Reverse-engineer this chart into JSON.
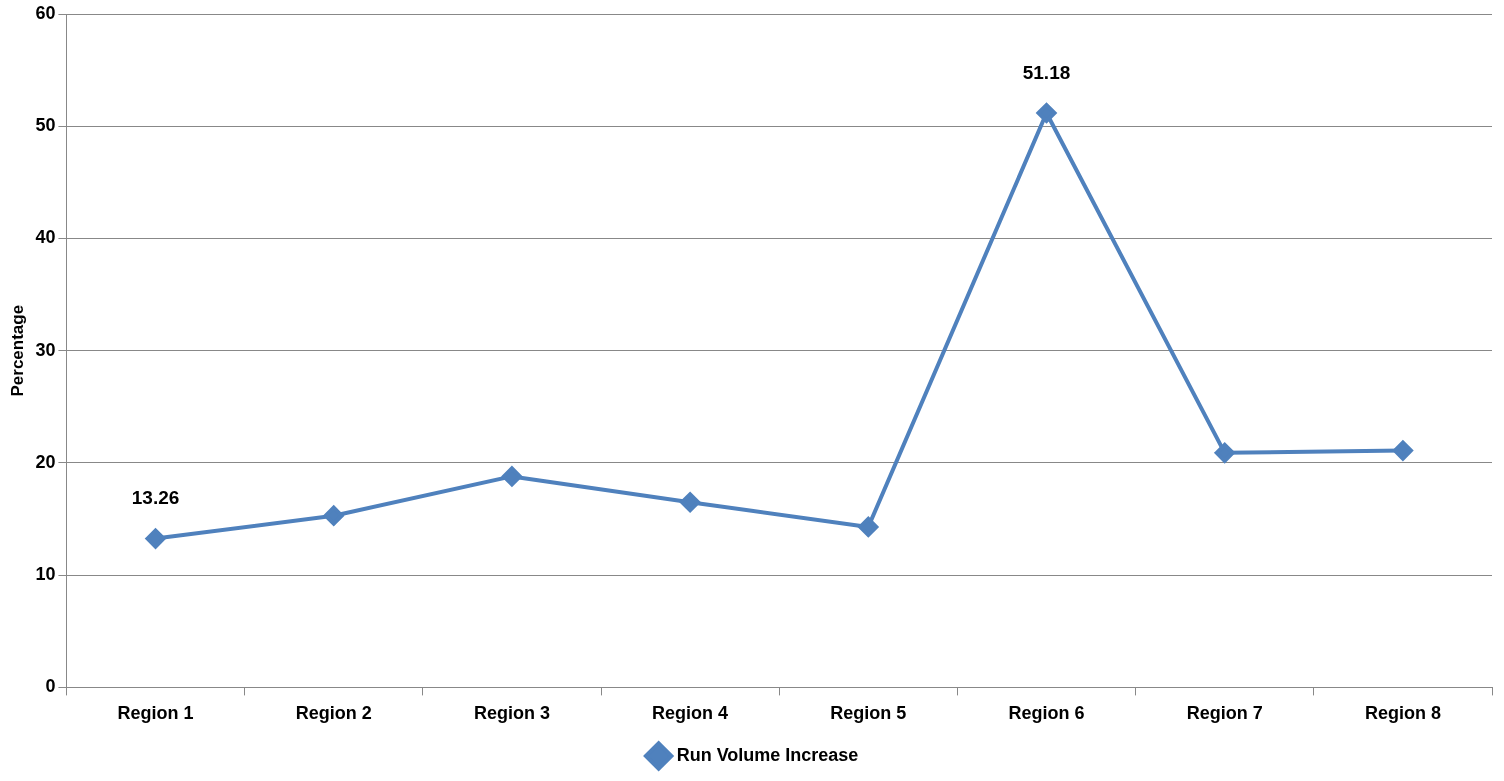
{
  "chart_data": {
    "type": "line",
    "ylabel": "Percentage",
    "categories": [
      "Region 1",
      "Region 2",
      "Region 3",
      "Region 4",
      "Region 5",
      "Region 6",
      "Region 7",
      "Region 8"
    ],
    "series": [
      {
        "name": "Run Volume Increase",
        "color": "#4f81bd",
        "values": [
          13.26,
          15.3,
          18.8,
          16.5,
          14.3,
          51.18,
          20.9,
          21.1
        ],
        "value_labels": [
          "13.26",
          null,
          null,
          null,
          null,
          "51.18",
          null,
          null
        ]
      }
    ],
    "ylim": [
      0,
      60
    ],
    "yticks": [
      0,
      10,
      20,
      30,
      40,
      50,
      60
    ],
    "grid": "y",
    "legend": "bottom",
    "marker": "diamond",
    "line_style": "solid"
  }
}
